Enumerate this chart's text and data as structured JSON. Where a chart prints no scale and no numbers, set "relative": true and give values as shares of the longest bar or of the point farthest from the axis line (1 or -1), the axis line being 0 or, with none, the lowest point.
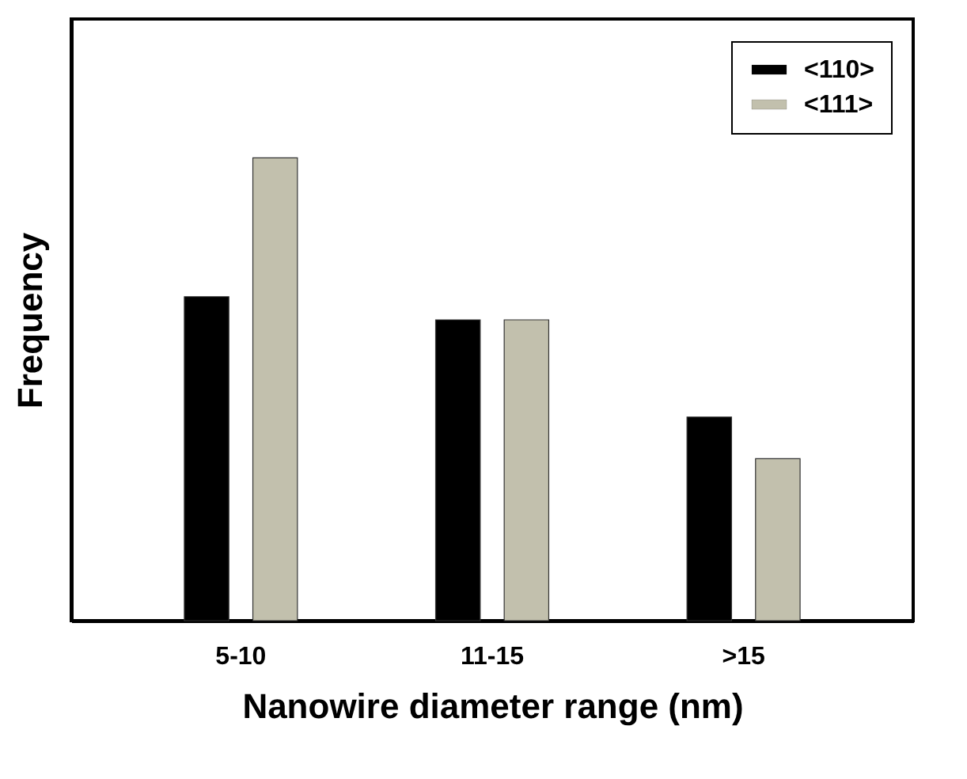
{
  "chart_data": {
    "type": "bar",
    "xlabel": "Nanowire diameter range (nm)",
    "ylabel": "Frequency",
    "relative": true,
    "categories": [
      "5-10",
      "11-15",
      ">15"
    ],
    "series": [
      {
        "name": "<110>",
        "color": "#000000",
        "values": [
          0.7,
          0.65,
          0.44
        ]
      },
      {
        "name": "<111>",
        "color": "#c2c0ad",
        "values": [
          1,
          0.65,
          0.35
        ]
      }
    ],
    "legend": "top right",
    "grid": false
  }
}
